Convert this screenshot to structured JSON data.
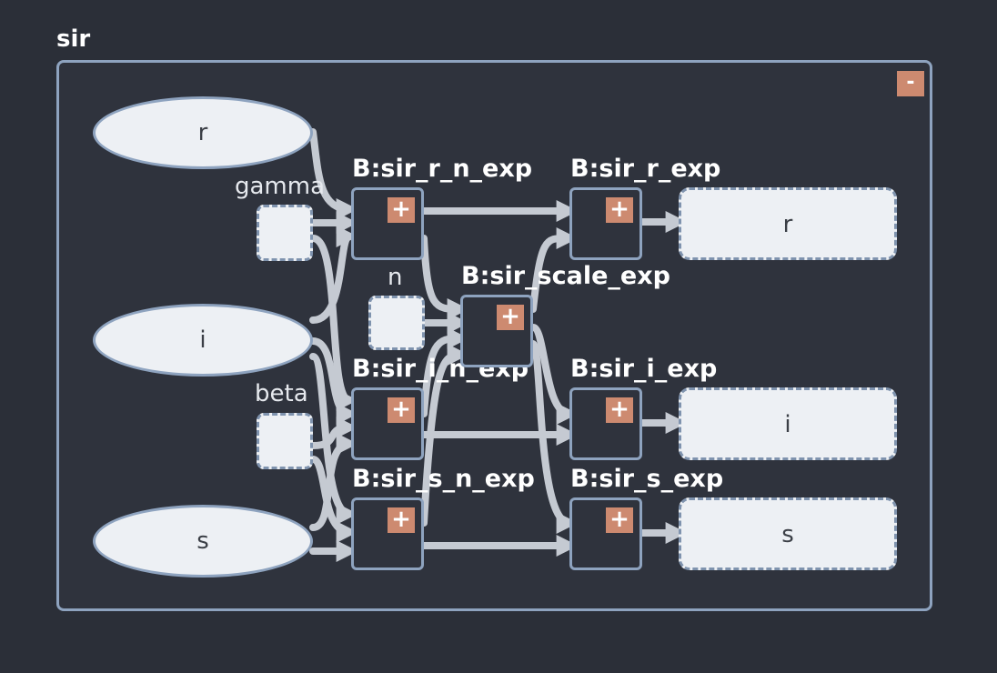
{
  "diagram": {
    "group_title": "sir",
    "collapse_label": "-",
    "plus_label": "+",
    "inputs": [
      {
        "id": "r",
        "label": "r"
      },
      {
        "id": "i",
        "label": "i"
      },
      {
        "id": "s",
        "label": "s"
      }
    ],
    "params": [
      {
        "id": "gamma",
        "label": "gamma"
      },
      {
        "id": "n",
        "label": "n"
      },
      {
        "id": "beta",
        "label": "beta"
      }
    ],
    "blocks": [
      {
        "id": "sir_r_n_exp",
        "label": "B:sir_r_n_exp"
      },
      {
        "id": "sir_i_n_exp",
        "label": "B:sir_i_n_exp"
      },
      {
        "id": "sir_s_n_exp",
        "label": "B:sir_s_n_exp"
      },
      {
        "id": "sir_scale_exp",
        "label": "B:sir_scale_exp"
      },
      {
        "id": "sir_r_exp",
        "label": "B:sir_r_exp"
      },
      {
        "id": "sir_i_exp",
        "label": "B:sir_i_exp"
      },
      {
        "id": "sir_s_exp",
        "label": "B:sir_s_exp"
      }
    ],
    "outputs": [
      {
        "id": "r",
        "label": "r"
      },
      {
        "id": "i",
        "label": "i"
      },
      {
        "id": "s",
        "label": "s"
      }
    ],
    "colors": {
      "background": "#2b2f38",
      "border": "#8ea3bf",
      "wire": "#c5cad2",
      "accent": "#cd8a70",
      "node_fill": "#edf0f4"
    }
  }
}
